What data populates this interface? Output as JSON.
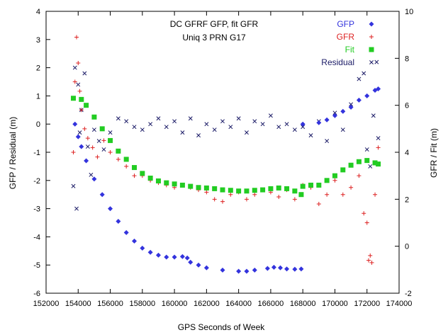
{
  "chart_data": {
    "type": "scatter",
    "title_lines": [
      "DC GFRF GFP, fit GFR",
      "Uniq 3 PRN G17"
    ],
    "xlabel": "GPS Seconds of Week",
    "ylabel_left": "GFP / Residual (m)",
    "ylabel_right": "GFR / Fit (m)",
    "xlim": [
      152000,
      174000
    ],
    "ylim_left": [
      -6,
      4
    ],
    "ylim_right": [
      -2,
      10
    ],
    "x_ticks": [
      152000,
      154000,
      156000,
      158000,
      160000,
      162000,
      164000,
      166000,
      168000,
      170000,
      172000,
      174000
    ],
    "y_left_ticks": [
      -6,
      -5,
      -4,
      -3,
      -2,
      -1,
      0,
      1,
      2,
      3,
      4
    ],
    "y_right_ticks": [
      -2,
      0,
      2,
      4,
      6,
      8,
      10
    ],
    "x_tick_labels": [
      "152000",
      "154000",
      "156000",
      "158000",
      "160000",
      "162000",
      "164000",
      "166000",
      "168000",
      "170000",
      "172000",
      "174000"
    ],
    "y_left_tick_labels": [
      "-6",
      "-5",
      "-4",
      "-3",
      "-2",
      "-1",
      "0",
      "1",
      "2",
      "3",
      "4"
    ],
    "y_right_tick_labels": [
      "-2",
      "0",
      "2",
      "4",
      "6",
      "8",
      "10"
    ],
    "grid": false,
    "legend_position": "top-right",
    "series": [
      {
        "name": "GFP",
        "axis": "left",
        "marker": "diamond",
        "color": "#3333dd",
        "points": [
          [
            153800,
            0.0
          ],
          [
            154000,
            -0.45
          ],
          [
            154200,
            -0.8
          ],
          [
            154500,
            -1.3
          ],
          [
            155000,
            -1.95
          ],
          [
            155500,
            -2.5
          ],
          [
            156000,
            -3.0
          ],
          [
            156500,
            -3.45
          ],
          [
            157000,
            -3.85
          ],
          [
            157500,
            -4.15
          ],
          [
            158000,
            -4.4
          ],
          [
            158500,
            -4.55
          ],
          [
            159000,
            -4.65
          ],
          [
            159500,
            -4.72
          ],
          [
            160000,
            -4.72
          ],
          [
            160500,
            -4.7
          ],
          [
            160800,
            -4.75
          ],
          [
            161000,
            -4.9
          ],
          [
            161500,
            -5.0
          ],
          [
            162000,
            -5.1
          ],
          [
            163000,
            -5.18
          ],
          [
            164000,
            -5.22
          ],
          [
            164500,
            -5.22
          ],
          [
            165000,
            -5.18
          ],
          [
            165800,
            -5.12
          ],
          [
            166200,
            -5.08
          ],
          [
            166600,
            -5.1
          ],
          [
            167000,
            -5.14
          ],
          [
            167500,
            -5.15
          ],
          [
            167900,
            -5.14
          ],
          [
            168000,
            0.0
          ],
          [
            169000,
            0.05
          ],
          [
            169500,
            0.15
          ],
          [
            170000,
            0.3
          ],
          [
            170500,
            0.45
          ],
          [
            171000,
            0.6
          ],
          [
            171500,
            0.85
          ],
          [
            172000,
            1.0
          ],
          [
            172500,
            1.2
          ],
          [
            172700,
            1.25
          ]
        ]
      },
      {
        "name": "GFR",
        "axis": "right",
        "marker": "plus",
        "color": "#dd2222",
        "points": [
          [
            153700,
            4.0
          ],
          [
            153800,
            7.0
          ],
          [
            153900,
            8.9
          ],
          [
            154000,
            7.8
          ],
          [
            154100,
            6.6
          ],
          [
            154200,
            5.8
          ],
          [
            154400,
            5.0
          ],
          [
            154600,
            4.6
          ],
          [
            154900,
            4.2
          ],
          [
            155200,
            3.8
          ],
          [
            155600,
            4.5
          ],
          [
            156000,
            4.0
          ],
          [
            156500,
            3.7
          ],
          [
            157000,
            3.4
          ],
          [
            157500,
            3.0
          ],
          [
            158000,
            3.0
          ],
          [
            158500,
            2.8
          ],
          [
            159000,
            2.7
          ],
          [
            159500,
            2.6
          ],
          [
            160000,
            2.5
          ],
          [
            160500,
            2.6
          ],
          [
            161000,
            2.5
          ],
          [
            161500,
            2.4
          ],
          [
            162000,
            2.3
          ],
          [
            162500,
            2.0
          ],
          [
            163000,
            1.9
          ],
          [
            163500,
            2.2
          ],
          [
            164000,
            2.3
          ],
          [
            164500,
            2.0
          ],
          [
            165000,
            2.2
          ],
          [
            165500,
            2.4
          ],
          [
            166000,
            2.3
          ],
          [
            166500,
            2.1
          ],
          [
            167000,
            2.4
          ],
          [
            167500,
            2.0
          ],
          [
            168000,
            2.6
          ],
          [
            168500,
            2.5
          ],
          [
            169000,
            1.8
          ],
          [
            169500,
            2.2
          ],
          [
            170000,
            2.8
          ],
          [
            170500,
            2.2
          ],
          [
            171000,
            2.5
          ],
          [
            171500,
            3.0
          ],
          [
            171800,
            1.4
          ],
          [
            172000,
            1.0
          ],
          [
            172100,
            -0.6
          ],
          [
            172200,
            -0.4
          ],
          [
            172300,
            -0.7
          ],
          [
            172500,
            2.2
          ],
          [
            172700,
            4.2
          ]
        ]
      },
      {
        "name": "Fit",
        "axis": "right",
        "marker": "square",
        "color": "#22cc22",
        "points": [
          [
            153700,
            6.3
          ],
          [
            154200,
            6.25
          ],
          [
            154500,
            6.0
          ],
          [
            155000,
            5.5
          ],
          [
            155500,
            5.0
          ],
          [
            156000,
            4.5
          ],
          [
            156500,
            4.05
          ],
          [
            157000,
            3.7
          ],
          [
            157500,
            3.35
          ],
          [
            158000,
            3.1
          ],
          [
            158500,
            2.9
          ],
          [
            159000,
            2.78
          ],
          [
            159500,
            2.7
          ],
          [
            160000,
            2.65
          ],
          [
            160500,
            2.6
          ],
          [
            161000,
            2.55
          ],
          [
            161500,
            2.5
          ],
          [
            162000,
            2.48
          ],
          [
            162500,
            2.45
          ],
          [
            163000,
            2.4
          ],
          [
            163500,
            2.38
          ],
          [
            164000,
            2.35
          ],
          [
            164500,
            2.35
          ],
          [
            165000,
            2.38
          ],
          [
            165500,
            2.4
          ],
          [
            166000,
            2.45
          ],
          [
            166500,
            2.48
          ],
          [
            167000,
            2.45
          ],
          [
            167500,
            2.35
          ],
          [
            167900,
            2.2
          ],
          [
            168000,
            2.55
          ],
          [
            168500,
            2.6
          ],
          [
            169000,
            2.6
          ],
          [
            169500,
            2.8
          ],
          [
            170000,
            3.0
          ],
          [
            170500,
            3.25
          ],
          [
            171000,
            3.45
          ],
          [
            171500,
            3.6
          ],
          [
            172000,
            3.65
          ],
          [
            172500,
            3.55
          ],
          [
            172700,
            3.5
          ]
        ]
      },
      {
        "name": "Residual",
        "axis": "left",
        "marker": "x",
        "color": "#1a1a66",
        "points": [
          [
            153700,
            -2.2
          ],
          [
            153800,
            2.0
          ],
          [
            153900,
            -3.0
          ],
          [
            154000,
            1.4
          ],
          [
            154100,
            -0.3
          ],
          [
            154200,
            0.5
          ],
          [
            154400,
            1.8
          ],
          [
            154600,
            -0.8
          ],
          [
            154800,
            -1.8
          ],
          [
            155000,
            -0.2
          ],
          [
            155300,
            -0.6
          ],
          [
            155600,
            -0.9
          ],
          [
            156000,
            -0.3
          ],
          [
            156500,
            0.2
          ],
          [
            157000,
            0.1
          ],
          [
            157500,
            -0.1
          ],
          [
            158000,
            -0.2
          ],
          [
            158500,
            0.0
          ],
          [
            159000,
            0.2
          ],
          [
            159500,
            -0.1
          ],
          [
            160000,
            0.1
          ],
          [
            160500,
            -0.3
          ],
          [
            161000,
            0.2
          ],
          [
            161500,
            -0.4
          ],
          [
            162000,
            0.0
          ],
          [
            162500,
            -0.2
          ],
          [
            163000,
            0.1
          ],
          [
            163500,
            -0.1
          ],
          [
            164000,
            0.2
          ],
          [
            164500,
            -0.3
          ],
          [
            165000,
            0.1
          ],
          [
            165500,
            0.0
          ],
          [
            166000,
            0.3
          ],
          [
            166500,
            -0.1
          ],
          [
            167000,
            0.0
          ],
          [
            167500,
            -0.2
          ],
          [
            168000,
            -0.1
          ],
          [
            168500,
            -0.4
          ],
          [
            169000,
            0.1
          ],
          [
            169500,
            -0.6
          ],
          [
            170000,
            0.4
          ],
          [
            170500,
            -0.2
          ],
          [
            171000,
            0.7
          ],
          [
            171500,
            1.6
          ],
          [
            171800,
            1.8
          ],
          [
            172000,
            -0.9
          ],
          [
            172200,
            -1.5
          ],
          [
            172400,
            0.3
          ],
          [
            172600,
            2.2
          ],
          [
            172700,
            -0.5
          ]
        ]
      }
    ]
  }
}
